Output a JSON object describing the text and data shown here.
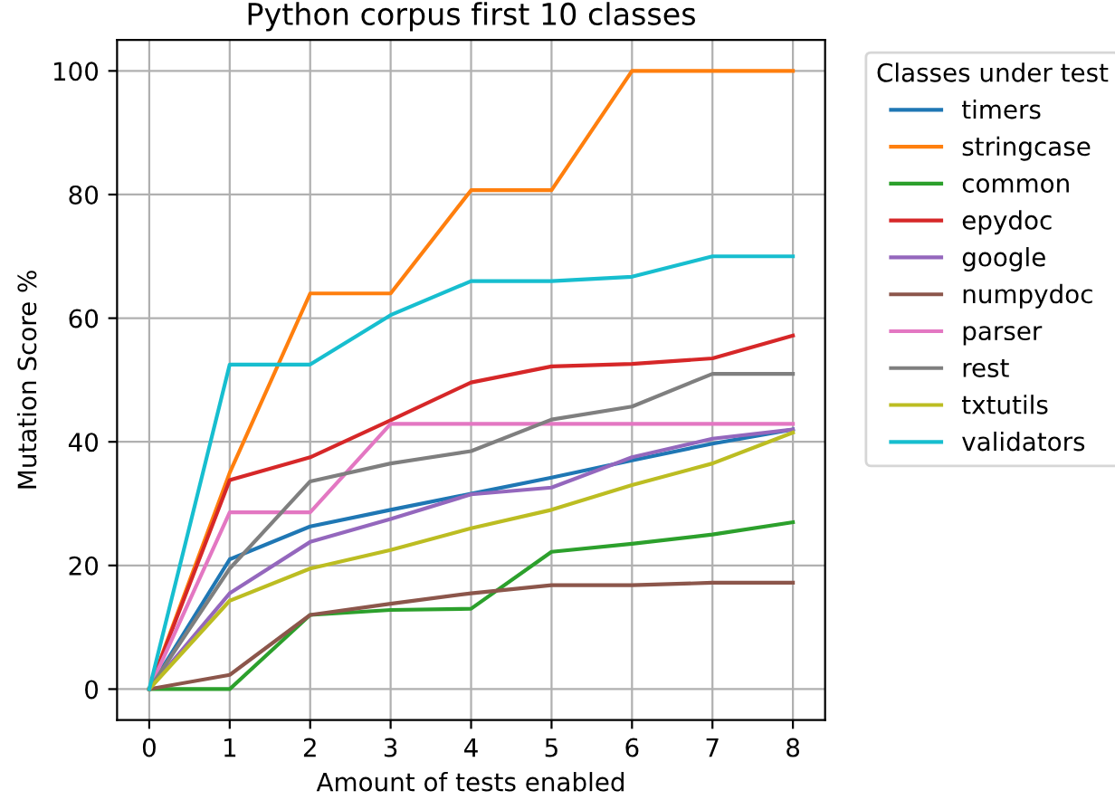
{
  "chart_data": {
    "type": "line",
    "title": "Python corpus first 10 classes",
    "xlabel": "Amount of tests enabled",
    "ylabel": "Mutation Score %",
    "legend_title": "Classes under test",
    "legend": "right",
    "grid": true,
    "x": [
      0,
      1,
      2,
      3,
      4,
      5,
      6,
      7,
      8
    ],
    "xlim": [
      -0.4,
      8.4
    ],
    "xticks": [
      0,
      1,
      2,
      3,
      4,
      5,
      6,
      7,
      8
    ],
    "ylim": [
      -5,
      105
    ],
    "yticks": [
      0,
      20,
      40,
      60,
      80,
      100
    ],
    "series": [
      {
        "name": "timers",
        "color": "#1f77b4",
        "values": [
          0,
          21,
          26.3,
          29,
          31.6,
          34.2,
          37,
          39.7,
          42
        ]
      },
      {
        "name": "stringcase",
        "color": "#ff7f0e",
        "values": [
          0,
          35,
          64,
          64,
          80.7,
          80.7,
          100,
          100,
          100
        ]
      },
      {
        "name": "common",
        "color": "#2ca02c",
        "values": [
          0,
          0,
          12,
          12.8,
          13,
          22.2,
          23.5,
          25,
          27
        ]
      },
      {
        "name": "epydoc",
        "color": "#d62728",
        "values": [
          0,
          33.8,
          37.5,
          43.5,
          49.6,
          52.2,
          52.6,
          53.5,
          57.2
        ]
      },
      {
        "name": "google",
        "color": "#9467bd",
        "values": [
          0,
          15.5,
          23.8,
          27.5,
          31.5,
          32.6,
          37.5,
          40.5,
          42
        ]
      },
      {
        "name": "numpydoc",
        "color": "#8c564b",
        "values": [
          0,
          2.3,
          12,
          13.8,
          15.5,
          16.8,
          16.8,
          17.2,
          17.2
        ]
      },
      {
        "name": "parser",
        "color": "#e377c2",
        "values": [
          0,
          28.6,
          28.6,
          42.9,
          42.9,
          42.9,
          42.9,
          42.9,
          42.9
        ]
      },
      {
        "name": "rest",
        "color": "#7f7f7f",
        "values": [
          0,
          19.5,
          33.6,
          36.5,
          38.5,
          43.6,
          45.7,
          51,
          51
        ]
      },
      {
        "name": "txtutils",
        "color": "#bcbd22",
        "values": [
          0,
          14.3,
          19.5,
          22.5,
          26,
          29,
          33,
          36.5,
          41.5
        ]
      },
      {
        "name": "validators",
        "color": "#17becf",
        "values": [
          0,
          52.5,
          52.5,
          60.5,
          66,
          66,
          66.7,
          70,
          70
        ]
      }
    ]
  }
}
